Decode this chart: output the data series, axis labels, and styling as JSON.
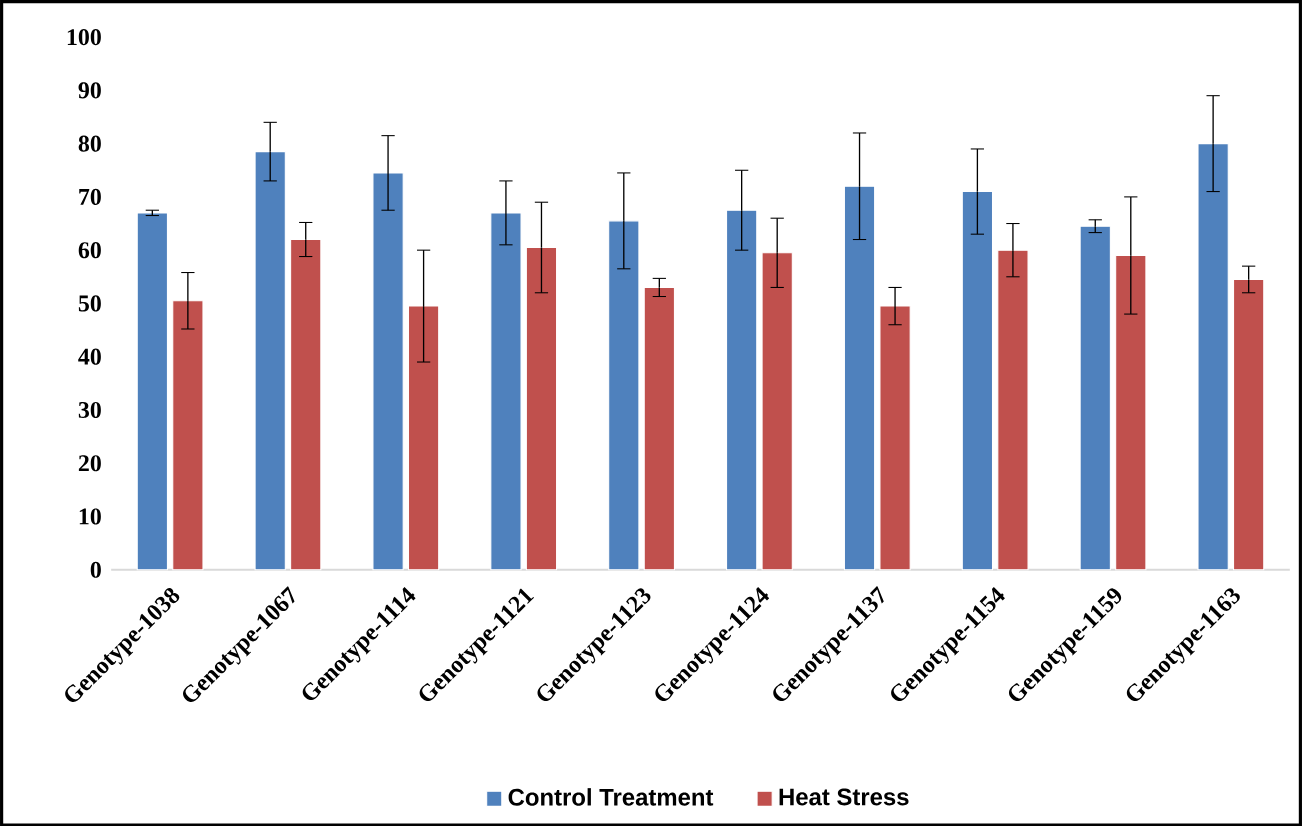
{
  "chart_data": {
    "type": "bar",
    "categories": [
      "Genotype-1038",
      "Genotype-1067",
      "Genotype-1114",
      "Genotype-1121",
      "Genotype-1123",
      "Genotype-1124",
      "Genotype-1137",
      "Genotype-1154",
      "Genotype-1159",
      "Genotype-1163"
    ],
    "series": [
      {
        "name": "Control Treatment",
        "color": "#4f81bd",
        "values": [
          67,
          78.5,
          74.5,
          67,
          65.5,
          67.5,
          72,
          71,
          64.5,
          80
        ],
        "errors": [
          0.5,
          5.5,
          7,
          6,
          9,
          7.5,
          10,
          8,
          1.2,
          9
        ]
      },
      {
        "name": "Heat Stress",
        "color": "#c0504d",
        "values": [
          50.5,
          62,
          49.5,
          60.5,
          53,
          59.5,
          49.5,
          60,
          59,
          54.5
        ],
        "errors": [
          5.3,
          3.2,
          10.5,
          8.5,
          1.7,
          6.5,
          3.5,
          5,
          11,
          2.5
        ]
      }
    ],
    "ylim": [
      0,
      100
    ],
    "yticks": [
      0,
      10,
      20,
      30,
      40,
      50,
      60,
      70,
      80,
      90,
      100
    ],
    "legend": "bottom"
  }
}
